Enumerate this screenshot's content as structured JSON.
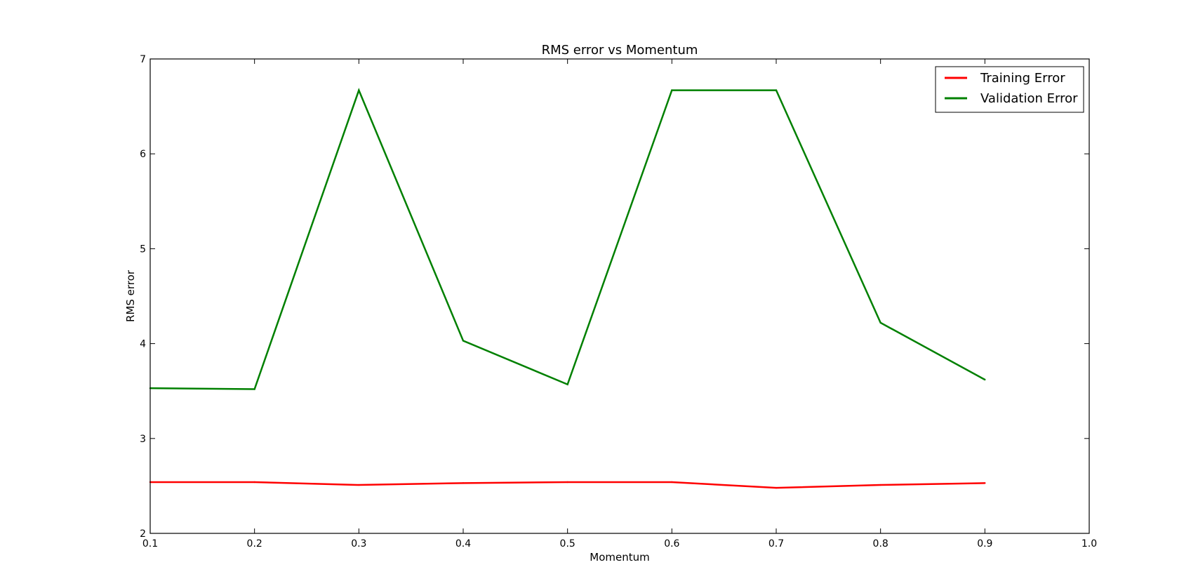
{
  "chart_data": {
    "type": "line",
    "title": "RMS error vs Momentum",
    "xlabel": "Momentum",
    "ylabel": "RMS error",
    "xlim": [
      0.1,
      1.0
    ],
    "ylim": [
      2,
      7
    ],
    "x_ticks": [
      "0.1",
      "0.2",
      "0.3",
      "0.4",
      "0.5",
      "0.6",
      "0.7",
      "0.8",
      "0.9",
      "1.0"
    ],
    "y_ticks": [
      "2",
      "3",
      "4",
      "5",
      "6",
      "7"
    ],
    "x": [
      0.1,
      0.2,
      0.3,
      0.4,
      0.5,
      0.6,
      0.7,
      0.8,
      0.9
    ],
    "series": [
      {
        "name": "Training Error",
        "color": "#ff0000",
        "values": [
          2.54,
          2.54,
          2.51,
          2.53,
          2.54,
          2.54,
          2.48,
          2.51,
          2.53
        ]
      },
      {
        "name": "Validation Error",
        "color": "#008000",
        "values": [
          3.53,
          3.52,
          6.67,
          4.03,
          3.57,
          6.67,
          6.67,
          4.22,
          3.62
        ]
      }
    ],
    "grid": false,
    "legend_position": "top-right"
  }
}
